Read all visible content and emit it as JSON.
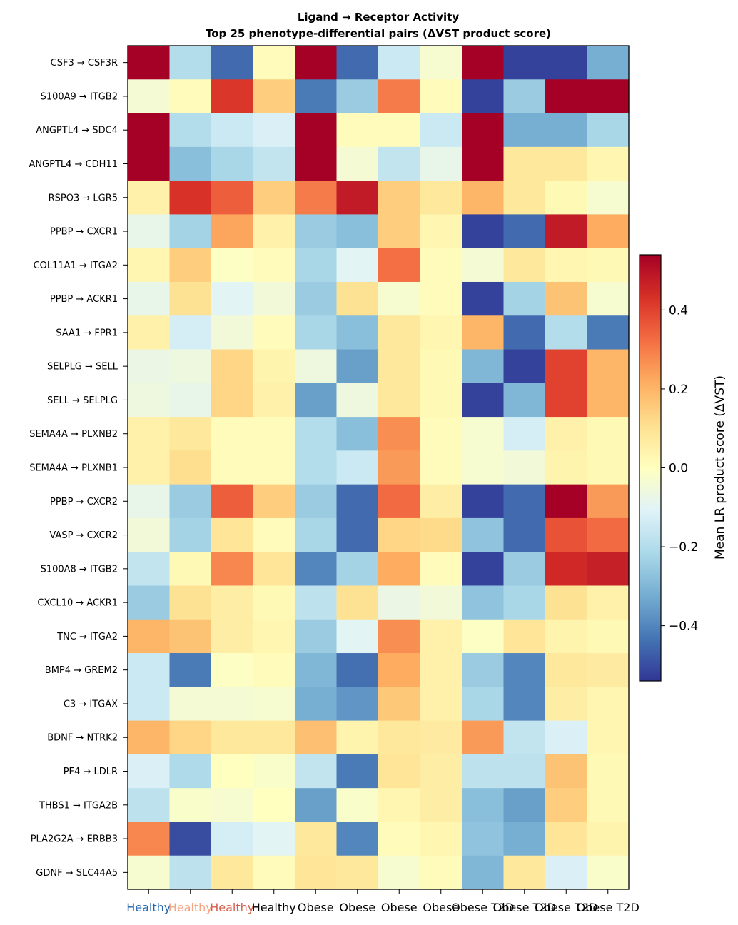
{
  "chart_data": {
    "type": "heatmap",
    "title": "Ligand → Receptor Activity",
    "subtitle": "Top 25 phenotype-differential pairs (ΔVST product score)",
    "colorbar_label": "Mean LR product score (ΔVST)",
    "colorbar_ticks": [
      {
        "value": 0.4,
        "label": "0.4"
      },
      {
        "value": 0.2,
        "label": "0.2"
      },
      {
        "value": 0.0,
        "label": "0.0"
      },
      {
        "value": -0.2,
        "label": "−0.2"
      },
      {
        "value": -0.4,
        "label": "−0.4"
      }
    ],
    "color_range": [
      -0.54,
      0.54
    ],
    "colormap": "RdYlBu_r",
    "columns": [
      {
        "label": "Healthy",
        "color": "#2166ac"
      },
      {
        "label": "Healthy",
        "color": "#f4a582"
      },
      {
        "label": "Healthy",
        "color": "#d6604d"
      },
      {
        "label": "Healthy",
        "color": "#000000"
      },
      {
        "label": "Obese",
        "color": "#000000"
      },
      {
        "label": "Obese",
        "color": "#000000"
      },
      {
        "label": "Obese",
        "color": "#000000"
      },
      {
        "label": "Obese",
        "color": "#000000"
      },
      {
        "label": "Obese T2D",
        "color": "#000000"
      },
      {
        "label": "Obese T2D",
        "color": "#000000"
      },
      {
        "label": "Obese T2D",
        "color": "#000000"
      },
      {
        "label": "Obese T2D",
        "color": "#000000"
      }
    ],
    "rows": [
      "CSF3 → CSF3R",
      "S100A9 → ITGB2",
      "ANGPTL4 → SDC4",
      "ANGPTL4 → CDH11",
      "RSPO3 → LGR5",
      "PPBP → CXCR1",
      "COL11A1 → ITGA2",
      "PPBP → ACKR1",
      "SAA1 → FPR1",
      "SELPLG → SELL",
      "SELL → SELPLG",
      "SEMA4A → PLXNB2",
      "SEMA4A → PLXNB1",
      "PPBP → CXCR2",
      "VASP → CXCR2",
      "S100A8 → ITGB2",
      "CXCL10 → ACKR1",
      "TNC → ITGA2",
      "BMP4 → GREM2",
      "C3 → ITGAX",
      "BDNF → NTRK2",
      "PF4 → LDLR",
      "THBS1 → ITGA2B",
      "PLA2G2A → ERBB3",
      "GDNF → SLC44A5"
    ],
    "values": [
      [
        0.55,
        -0.2,
        -0.45,
        0.01,
        0.55,
        -0.45,
        -0.15,
        -0.03,
        0.55,
        -0.52,
        -0.52,
        -0.32
      ],
      [
        -0.04,
        0.01,
        0.42,
        0.15,
        -0.42,
        -0.25,
        0.3,
        0.01,
        -0.52,
        -0.25,
        0.55,
        0.55
      ],
      [
        0.55,
        -0.2,
        -0.15,
        -0.12,
        0.55,
        0.01,
        0.01,
        -0.15,
        0.55,
        -0.32,
        -0.32,
        -0.22
      ],
      [
        0.55,
        -0.28,
        -0.22,
        -0.17,
        0.55,
        -0.04,
        -0.17,
        -0.08,
        0.55,
        0.08,
        0.08,
        0.03
      ],
      [
        0.05,
        0.43,
        0.35,
        0.15,
        0.3,
        0.48,
        0.15,
        0.08,
        0.2,
        0.08,
        0.02,
        -0.03
      ],
      [
        -0.08,
        -0.23,
        0.23,
        0.05,
        -0.25,
        -0.28,
        0.15,
        0.03,
        -0.52,
        -0.45,
        0.48,
        0.22
      ],
      [
        0.03,
        0.15,
        -0.01,
        0.01,
        -0.22,
        -0.1,
        0.32,
        0.01,
        -0.04,
        0.08,
        0.03,
        0.02
      ],
      [
        -0.08,
        0.1,
        -0.1,
        -0.05,
        -0.25,
        0.1,
        -0.03,
        0.01,
        -0.52,
        -0.23,
        0.17,
        -0.03
      ],
      [
        0.05,
        -0.13,
        -0.05,
        0.01,
        -0.22,
        -0.28,
        0.08,
        0.03,
        0.2,
        -0.45,
        -0.2,
        -0.42
      ],
      [
        -0.07,
        -0.06,
        0.13,
        0.04,
        -0.06,
        -0.35,
        0.08,
        0.02,
        -0.3,
        -0.52,
        0.4,
        0.2
      ],
      [
        -0.06,
        -0.08,
        0.13,
        0.05,
        -0.35,
        -0.06,
        0.08,
        0.02,
        -0.52,
        -0.3,
        0.4,
        0.2
      ],
      [
        0.05,
        0.08,
        0.01,
        0.01,
        -0.2,
        -0.28,
        0.27,
        0.01,
        -0.03,
        -0.13,
        0.05,
        0.02
      ],
      [
        0.05,
        0.11,
        0.01,
        0.01,
        -0.2,
        -0.15,
        0.25,
        0.01,
        -0.03,
        -0.05,
        0.04,
        0.02
      ],
      [
        -0.08,
        -0.25,
        0.35,
        0.15,
        -0.25,
        -0.45,
        0.33,
        0.06,
        -0.52,
        -0.45,
        0.55,
        0.25
      ],
      [
        -0.05,
        -0.23,
        0.09,
        0.01,
        -0.22,
        -0.45,
        0.13,
        0.12,
        -0.27,
        -0.45,
        0.37,
        0.33
      ],
      [
        -0.17,
        0.02,
        0.28,
        0.09,
        -0.4,
        -0.23,
        0.22,
        0.01,
        -0.52,
        -0.25,
        0.45,
        0.47
      ],
      [
        -0.25,
        0.1,
        0.06,
        0.02,
        -0.18,
        0.1,
        -0.07,
        -0.05,
        -0.27,
        -0.22,
        0.1,
        0.05
      ],
      [
        0.2,
        0.17,
        0.06,
        0.03,
        -0.25,
        -0.1,
        0.27,
        0.05,
        -0.01,
        0.09,
        0.04,
        0.02
      ],
      [
        -0.15,
        -0.42,
        -0.01,
        0.01,
        -0.3,
        -0.44,
        0.22,
        0.05,
        -0.25,
        -0.4,
        0.08,
        0.07
      ],
      [
        -0.15,
        -0.04,
        -0.04,
        -0.03,
        -0.32,
        -0.37,
        0.16,
        0.05,
        -0.22,
        -0.4,
        0.06,
        0.03
      ],
      [
        0.2,
        0.13,
        0.08,
        0.08,
        0.18,
        0.04,
        0.08,
        0.07,
        0.25,
        -0.17,
        -0.12,
        0.03
      ],
      [
        -0.12,
        -0.21,
        0.0,
        -0.02,
        -0.17,
        -0.42,
        0.09,
        0.06,
        -0.18,
        -0.18,
        0.17,
        0.02
      ],
      [
        -0.18,
        -0.02,
        -0.03,
        0.0,
        -0.35,
        -0.02,
        0.03,
        0.06,
        -0.28,
        -0.35,
        0.15,
        0.02
      ],
      [
        0.28,
        -0.5,
        -0.13,
        -0.1,
        0.08,
        -0.4,
        0.01,
        0.03,
        -0.27,
        -0.32,
        0.09,
        0.04
      ],
      [
        -0.03,
        -0.18,
        0.08,
        0.01,
        0.09,
        0.08,
        -0.03,
        0.01,
        -0.3,
        0.08,
        -0.12,
        -0.02
      ]
    ]
  }
}
